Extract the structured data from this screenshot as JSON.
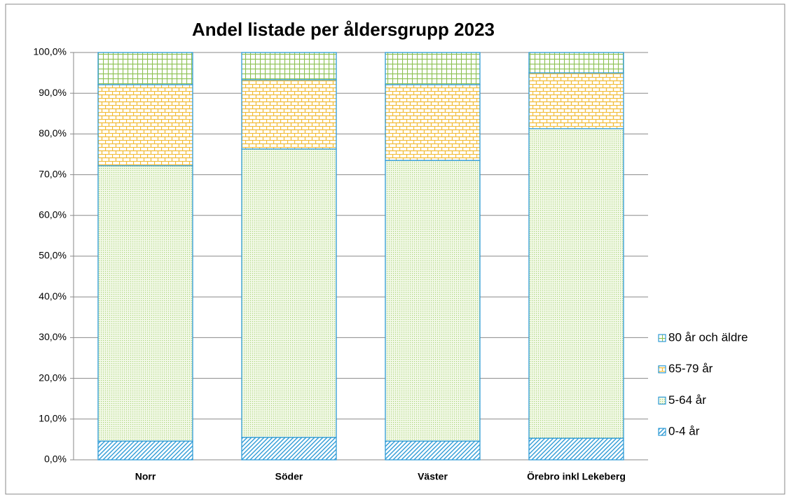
{
  "chart_data": {
    "type": "stacked_bar",
    "title": "Andel listade per åldersgrupp 2023",
    "categories": [
      "Norr",
      "Söder",
      "Väster",
      "Örebro inkl Lekeberg"
    ],
    "series": [
      {
        "name": "0-4 år",
        "color": "#2e9bd6",
        "pattern": "hatch",
        "values": [
          4.6,
          5.5,
          4.6,
          5.3
        ]
      },
      {
        "name": "5-64 år",
        "color": "#a9d47a",
        "pattern": "dots",
        "values": [
          67.6,
          70.8,
          68.9,
          76.0
        ]
      },
      {
        "name": "65-79 år",
        "color": "#f2bd3a",
        "pattern": "brick",
        "values": [
          19.9,
          17.0,
          18.6,
          13.7
        ]
      },
      {
        "name": "80 år och äldre",
        "color": "#8cc152",
        "pattern": "grid",
        "values": [
          7.9,
          6.7,
          7.9,
          5.0
        ]
      }
    ],
    "ylim": [
      0,
      100
    ],
    "yticks": [
      {
        "value": 0,
        "label": "0,0%"
      },
      {
        "value": 10,
        "label": "10,0%"
      },
      {
        "value": 20,
        "label": "20,0%"
      },
      {
        "value": 30,
        "label": "30,0%"
      },
      {
        "value": 40,
        "label": "40,0%"
      },
      {
        "value": 50,
        "label": "50,0%"
      },
      {
        "value": 60,
        "label": "60,0%"
      },
      {
        "value": 70,
        "label": "70,0%"
      },
      {
        "value": 80,
        "label": "80,0%"
      },
      {
        "value": 90,
        "label": "90,0%"
      },
      {
        "value": 100,
        "label": "100,0%"
      }
    ],
    "grid": true,
    "legend": "right"
  }
}
